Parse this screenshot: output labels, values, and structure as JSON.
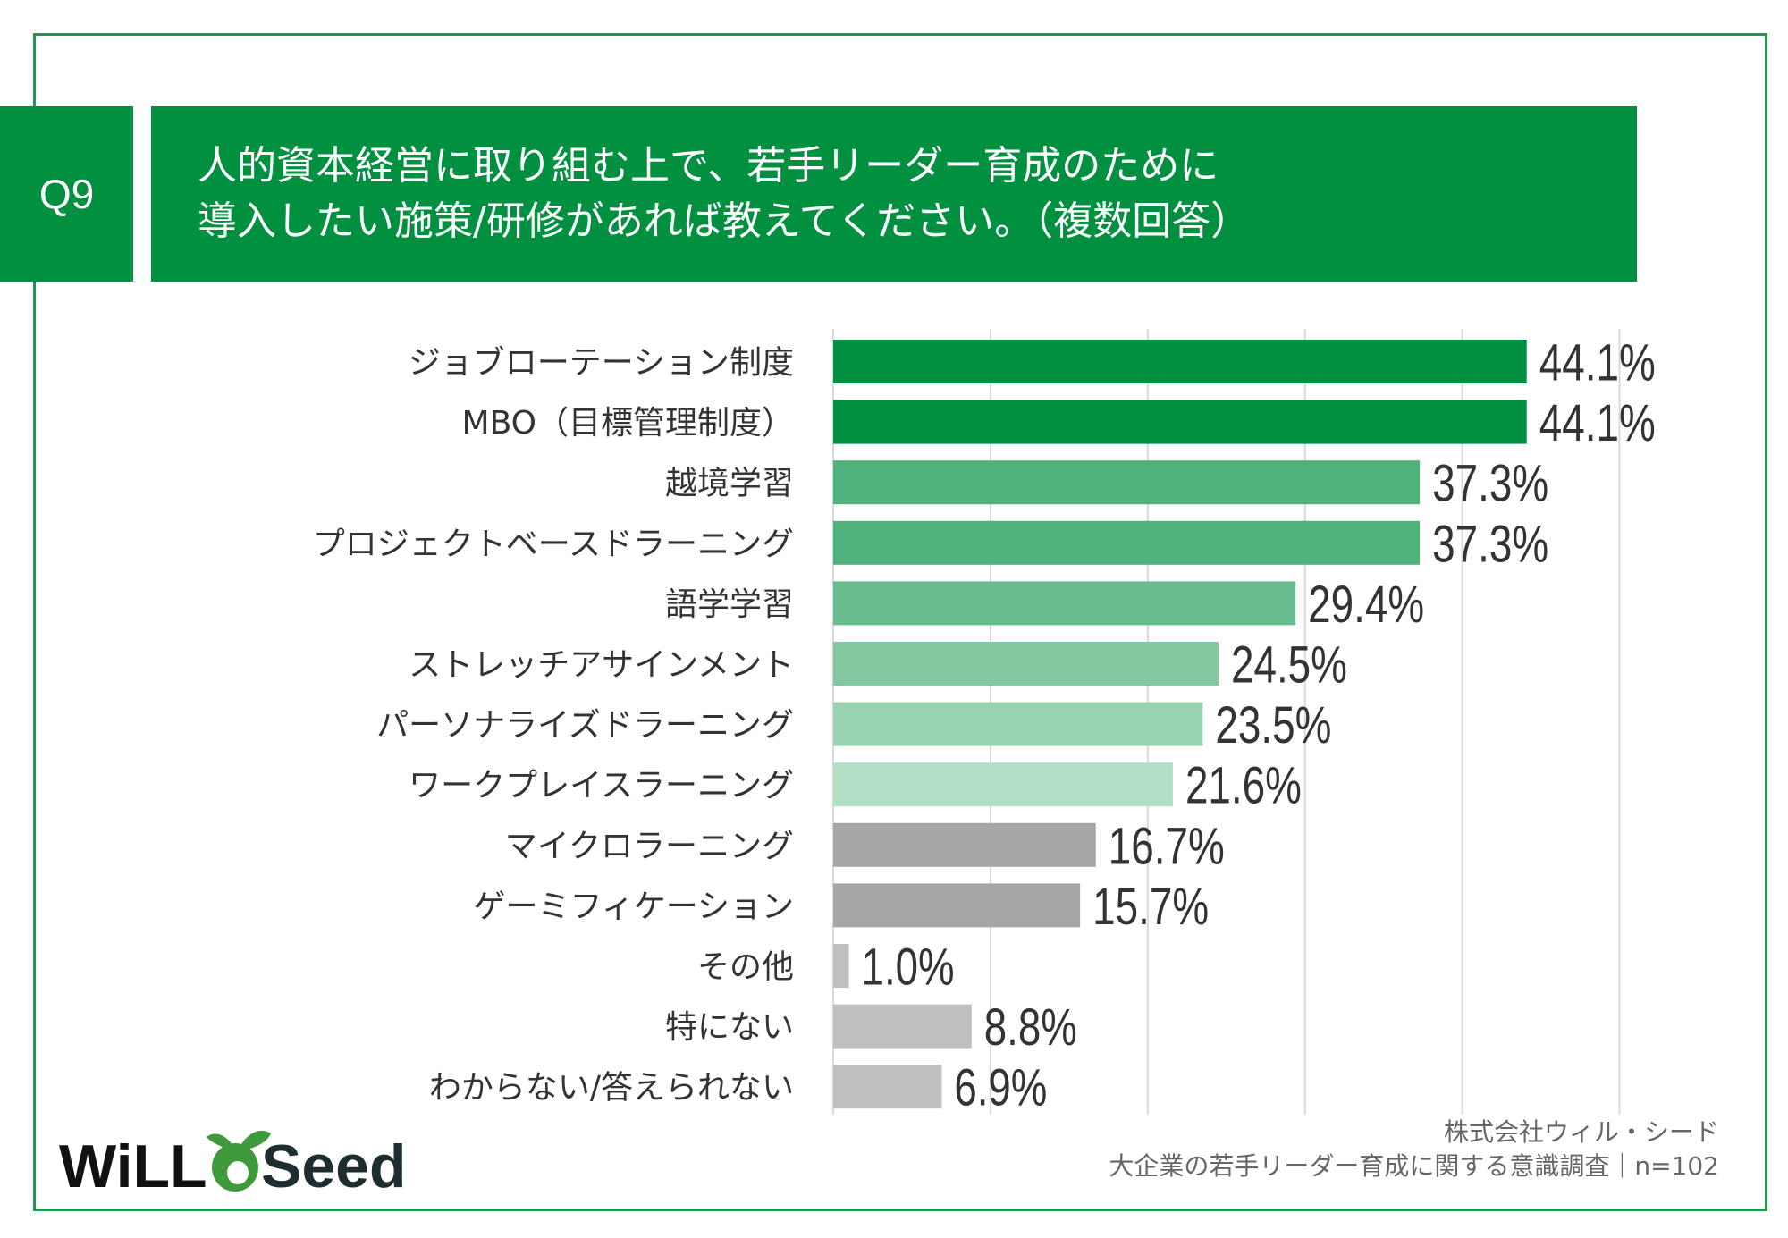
{
  "header": {
    "question_no": "Q9",
    "title_line1": "人的資本経営に取り組む上で、若手リーダー育成のために",
    "title_line2": "導入したい施策/研修があれば教えてください。（複数回答）"
  },
  "chart_data": {
    "type": "bar",
    "orientation": "horizontal",
    "categories": [
      "ジョブローテーション制度",
      "MBO（目標管理制度）",
      "越境学習",
      "プロジェクトベースドラーニング",
      "語学学習",
      "ストレッチアサインメント",
      "パーソナライズドラーニング",
      "ワークプレイスラーニング",
      "マイクロラーニング",
      "ゲーミフィケーション",
      "その他",
      "特にない",
      "わからない/答えられない"
    ],
    "values": [
      44.1,
      44.1,
      37.3,
      37.3,
      29.4,
      24.5,
      23.5,
      21.6,
      16.7,
      15.7,
      1.0,
      8.8,
      6.9
    ],
    "value_labels": [
      "44.1%",
      "44.1%",
      "37.3%",
      "37.3%",
      "29.4%",
      "24.5%",
      "23.5%",
      "21.6%",
      "16.7%",
      "15.7%",
      "1.0%",
      "8.8%",
      "6.9%"
    ],
    "colors": [
      "#009040",
      "#009040",
      "#4fb27a",
      "#4fb27a",
      "#68bd8e",
      "#82c8a0",
      "#9ad3b2",
      "#b3dfc6",
      "#a6a6a6",
      "#a6a6a6",
      "#bfbfbf",
      "#bfbfbf",
      "#bfbfbf"
    ],
    "xlim": [
      0,
      50
    ],
    "grid": true,
    "grid_step": 10
  },
  "footer": {
    "company": "株式会社ウィル・シード",
    "survey": "大企業の若手リーダー育成に関する意識調査｜n=102"
  },
  "logo": {
    "text_left": "WiLL",
    "text_right": "Seed",
    "green": "#3f9a3c",
    "dark": "#1e2d2f"
  }
}
